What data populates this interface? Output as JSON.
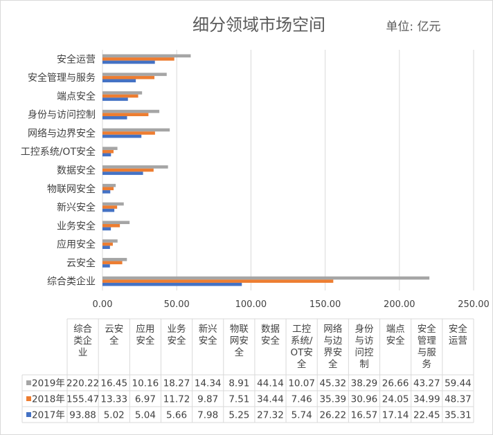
{
  "chart_data": {
    "type": "bar",
    "orientation": "horizontal",
    "title": "细分领域市场空间",
    "unit_label": "单位:  亿元",
    "xlim": [
      0,
      250
    ],
    "x_ticks": [
      "0.00",
      "50.00",
      "100.00",
      "150.00",
      "200.00",
      "250.00"
    ],
    "grid": true,
    "legend_placement": "bottom (data table)",
    "categories": [
      "综合类企业",
      "云安全",
      "应用安全",
      "业务安全",
      "新兴安全",
      "物联网安全",
      "数据安全",
      "工控系统/OT安全",
      "网络与边界安全",
      "身份与访问控制",
      "端点安全",
      "安全管理与服务",
      "安全运营"
    ],
    "table_headers": [
      "综合\n类企\n业",
      "云安\n全",
      "应用\n安全",
      "业务\n安全",
      "新兴\n安全",
      "物联\n网安\n全",
      "数据\n安全",
      "工控\n系统/\nOT安\n全",
      "网络\n与边\n界安\n全",
      "身份\n与访\n问控\n制",
      "端点\n安全",
      "安全\n管理\n与服\n务",
      "安全\n运营"
    ],
    "series": [
      {
        "name": "2019年",
        "color": "#a5a5a5",
        "values": [
          220.22,
          16.45,
          10.16,
          18.27,
          14.34,
          8.91,
          44.14,
          10.07,
          45.32,
          38.29,
          26.66,
          43.27,
          59.44
        ],
        "labels": [
          "220.22",
          "16.45",
          "10.16",
          "18.27",
          "14.34",
          "8.91",
          "44.14",
          "10.07",
          "45.32",
          "38.29",
          "26.66",
          "43.27",
          "59.44"
        ]
      },
      {
        "name": "2018年",
        "color": "#ed7d31",
        "values": [
          155.47,
          13.33,
          6.97,
          11.72,
          9.87,
          7.51,
          34.44,
          7.46,
          35.39,
          30.96,
          24.05,
          34.99,
          48.37
        ],
        "labels": [
          "155.47",
          "13.33",
          "6.97",
          "11.72",
          "9.87",
          "7.51",
          "34.44",
          "7.46",
          "35.39",
          "30.96",
          "24.05",
          "34.99",
          "48.37"
        ]
      },
      {
        "name": "2017年",
        "color": "#4472c4",
        "values": [
          93.88,
          5.02,
          5.04,
          5.66,
          7.98,
          5.25,
          27.32,
          5.74,
          26.22,
          16.57,
          17.14,
          22.45,
          35.31
        ],
        "labels": [
          "93.88",
          "5.02",
          "5.04",
          "5.66",
          "7.98",
          "5.25",
          "27.32",
          "5.74",
          "26.22",
          "16.57",
          "17.14",
          "22.45",
          "35.31"
        ]
      }
    ]
  }
}
